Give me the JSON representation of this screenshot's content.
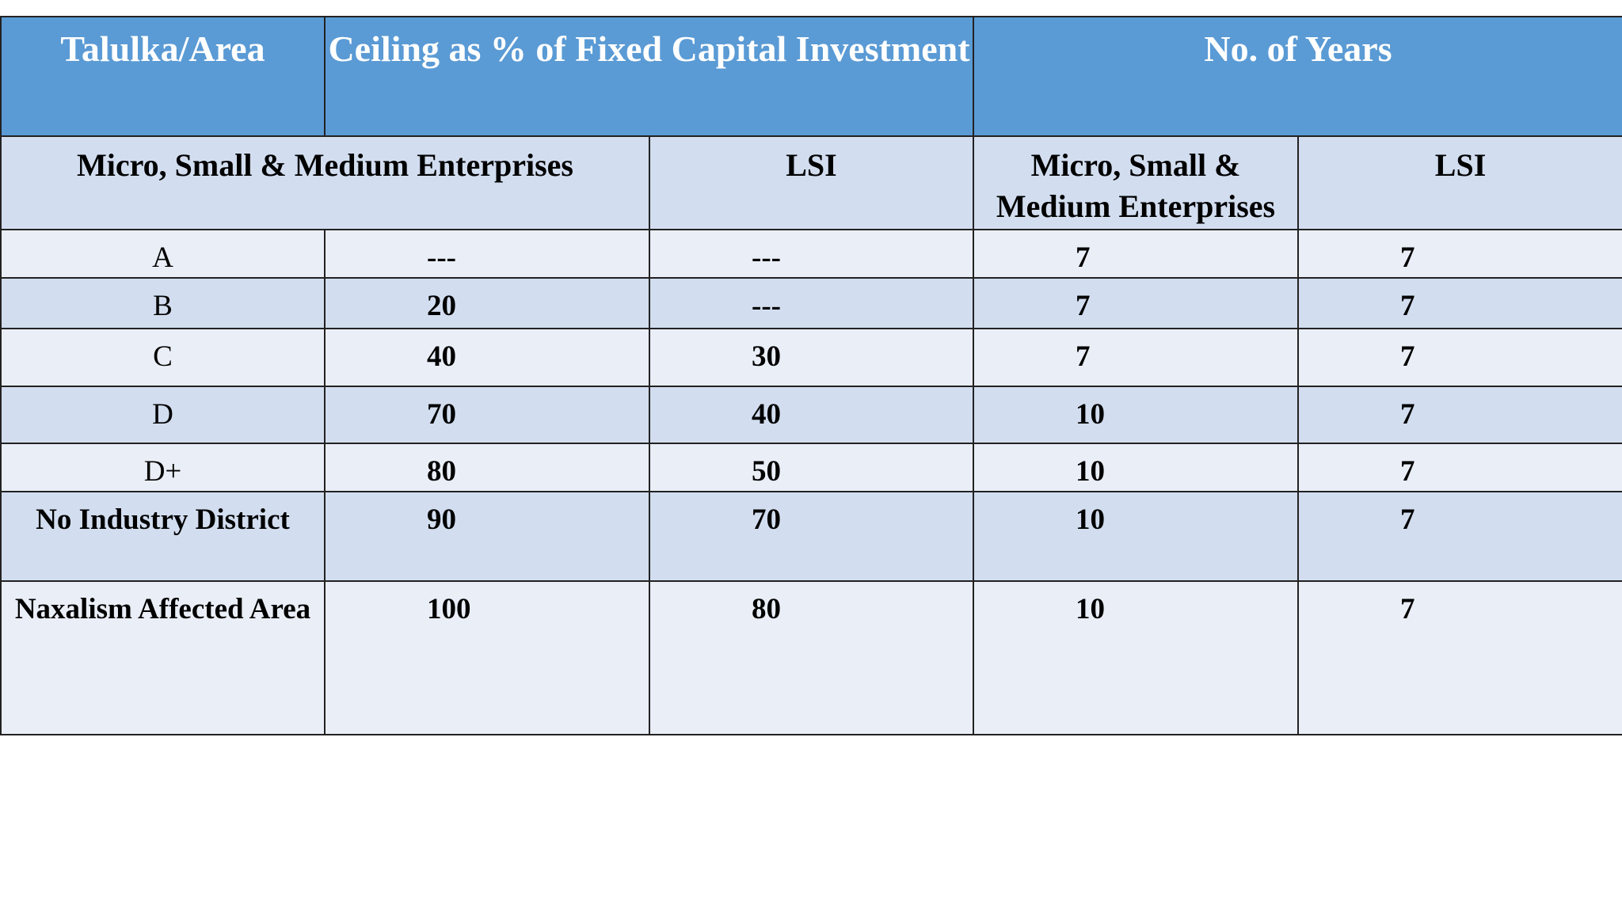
{
  "table": {
    "header": [
      "Talulka/Area",
      "Ceiling as % of Fixed Capital Investment",
      "No. of Years"
    ],
    "subheader": [
      "Micro, Small & Medium Enterprises",
      "LSI",
      "Micro, Small & Medium Enterprises",
      "LSI"
    ],
    "rows": [
      [
        "A",
        "---",
        "---",
        "7",
        "7"
      ],
      [
        "B",
        "20",
        "---",
        "7",
        "7"
      ],
      [
        "C",
        "40",
        "30",
        "7",
        "7"
      ],
      [
        "D",
        "70",
        "40",
        "10",
        "7"
      ],
      [
        "D+",
        "80",
        "50",
        "10",
        "7"
      ],
      [
        "No Industry District",
        "90",
        "70",
        "10",
        "7"
      ],
      [
        "Naxalism Affected Area",
        "100",
        "80",
        "10",
        "7"
      ]
    ]
  }
}
